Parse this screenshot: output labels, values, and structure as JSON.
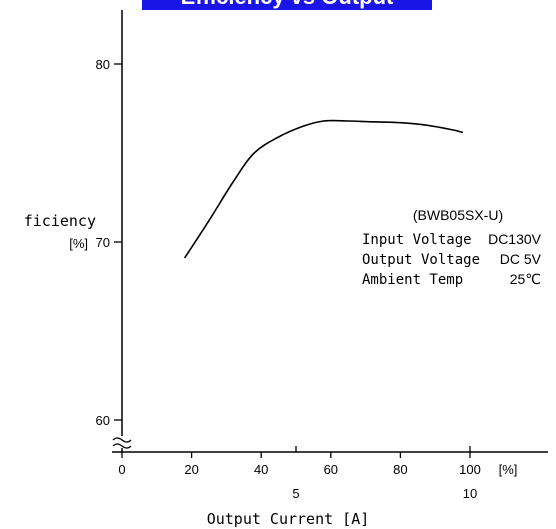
{
  "header": {
    "title": "Efficiency vs Output Current"
  },
  "chart_data": {
    "type": "line",
    "x": [
      18,
      25,
      32,
      38,
      45,
      52,
      58,
      65,
      72,
      80,
      88,
      95,
      98
    ],
    "series": [
      {
        "values": [
          69.1,
          71.2,
          73.4,
          75.0,
          75.9,
          76.5,
          76.8,
          76.8,
          76.75,
          76.7,
          76.55,
          76.3,
          76.15
        ]
      }
    ],
    "title": "",
    "xlabel": "Output Current [A]",
    "ylabel": "ficiency\n[%]",
    "x_unit_label": "[%]",
    "xlim": [
      0,
      100
    ],
    "ylim": [
      60,
      80
    ],
    "x_ticks": [
      "0",
      "20",
      "40",
      "60",
      "80",
      "100"
    ],
    "y_ticks": [
      "60",
      "70",
      "80"
    ],
    "secondary_x_ticks": [
      "5",
      "10"
    ],
    "axis_break": "≈",
    "grid": false,
    "legend": "none",
    "annotation": {
      "model": "(BWB05SX-U)",
      "rows": [
        {
          "label": "Input Voltage",
          "value": "DC130V"
        },
        {
          "label": "Output Voltage",
          "value": "DC 5V"
        },
        {
          "label": "Ambient Temp",
          "value": "25℃"
        }
      ]
    },
    "colors": {
      "line": "#000000",
      "banner": "#1a14e6"
    }
  }
}
